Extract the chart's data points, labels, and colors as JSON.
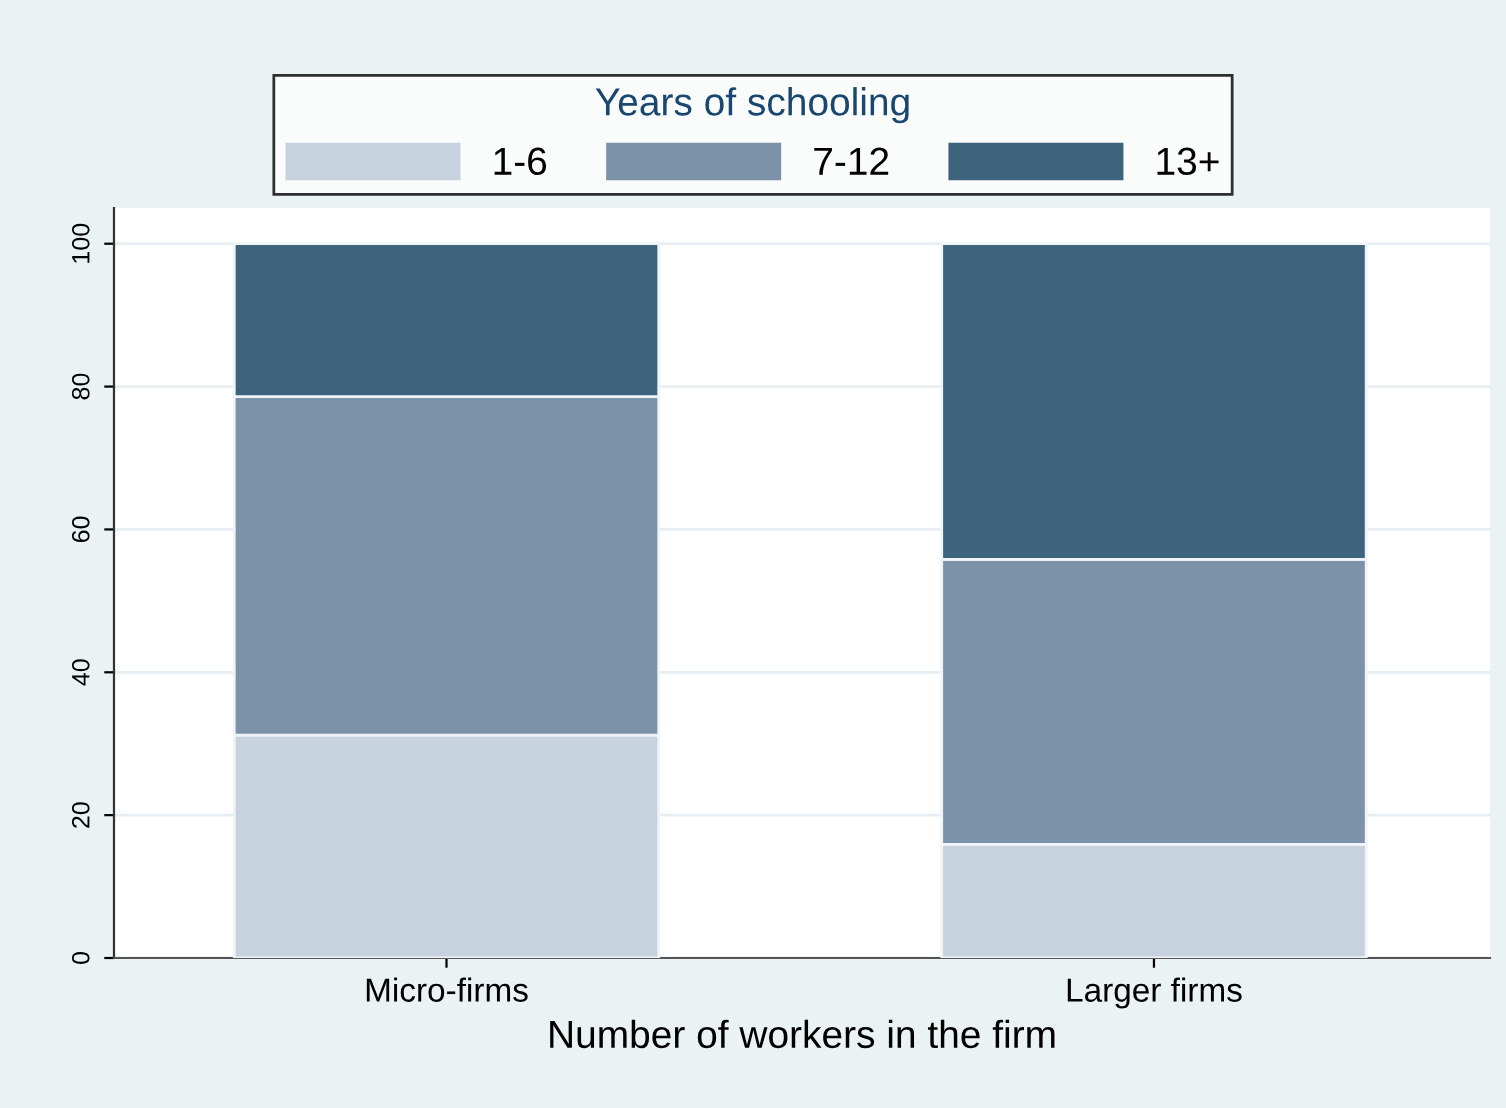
{
  "chart_data": {
    "type": "bar",
    "stacked": true,
    "categories": [
      "Micro-firms",
      "Larger firms"
    ],
    "series": [
      {
        "name": "1-6",
        "color": "#c6d3df",
        "values": [
          31.2,
          15.9
        ]
      },
      {
        "name": "7-12",
        "color": "#7b92a8",
        "values": [
          47.4,
          39.9
        ]
      },
      {
        "name": "13+",
        "color": "#3e647d",
        "values": [
          21.4,
          44.2
        ]
      }
    ],
    "xlabel": "Number of workers in the firm",
    "legend_title": "Years of schooling",
    "legend": "top",
    "ylim": [
      0,
      105
    ],
    "yticks": [
      0,
      20,
      40,
      60,
      80,
      100
    ],
    "grid": "y"
  }
}
